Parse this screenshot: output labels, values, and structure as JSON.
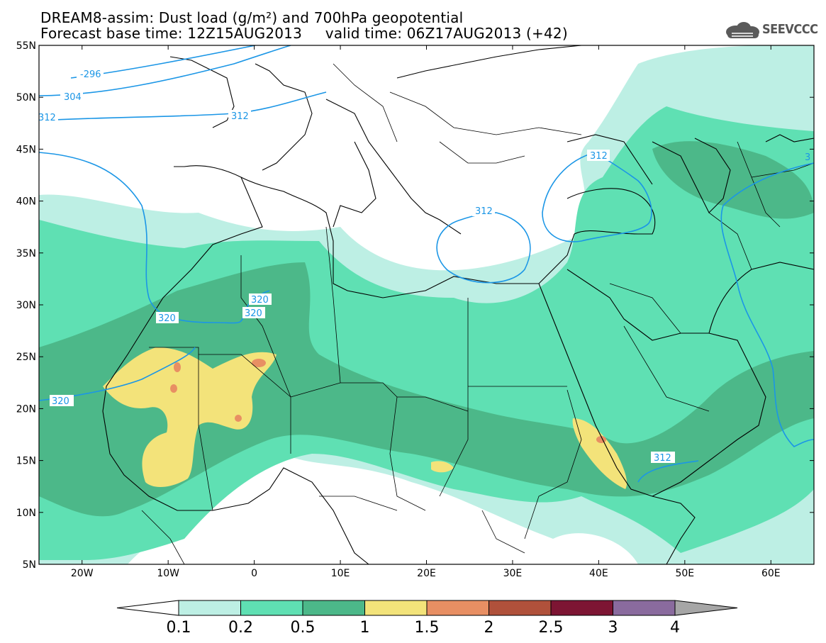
{
  "title": {
    "line1": "DREAM8-assim: Dust load (g/m²) and 700hPa geopotential",
    "line2": "Forecast base time: 12Z15AUG2013     valid time: 06Z17AUG2013 (+42)"
  },
  "logo": {
    "text": "SEEVCCC",
    "icon": "cloud-icon"
  },
  "map": {
    "lat_labels": [
      "55N",
      "50N",
      "45N",
      "40N",
      "35N",
      "30N",
      "25N",
      "20N",
      "15N",
      "10N",
      "5N"
    ],
    "lon_labels": [
      "20W",
      "10W",
      "0",
      "10E",
      "20E",
      "30E",
      "40E",
      "50E",
      "60E"
    ],
    "lon_range": [
      -25,
      65
    ],
    "lat_range": [
      5,
      55
    ],
    "contour_labels": [
      "-296",
      "304",
      "312",
      "312",
      "312",
      "312",
      "312",
      "320",
      "320",
      "320",
      "320",
      "3"
    ]
  },
  "colorbar": {
    "labels": [
      "0.1",
      "0.2",
      "0.5",
      "1",
      "1.5",
      "2",
      "2.5",
      "3",
      "4"
    ],
    "colors": [
      "#ffffff",
      "#bdefe4",
      "#5fe0b3",
      "#4cb889",
      "#f3e37a",
      "#e88f63",
      "#b0513b",
      "#7d1533",
      "#8a6b9e",
      "#a6a6a6"
    ]
  }
}
